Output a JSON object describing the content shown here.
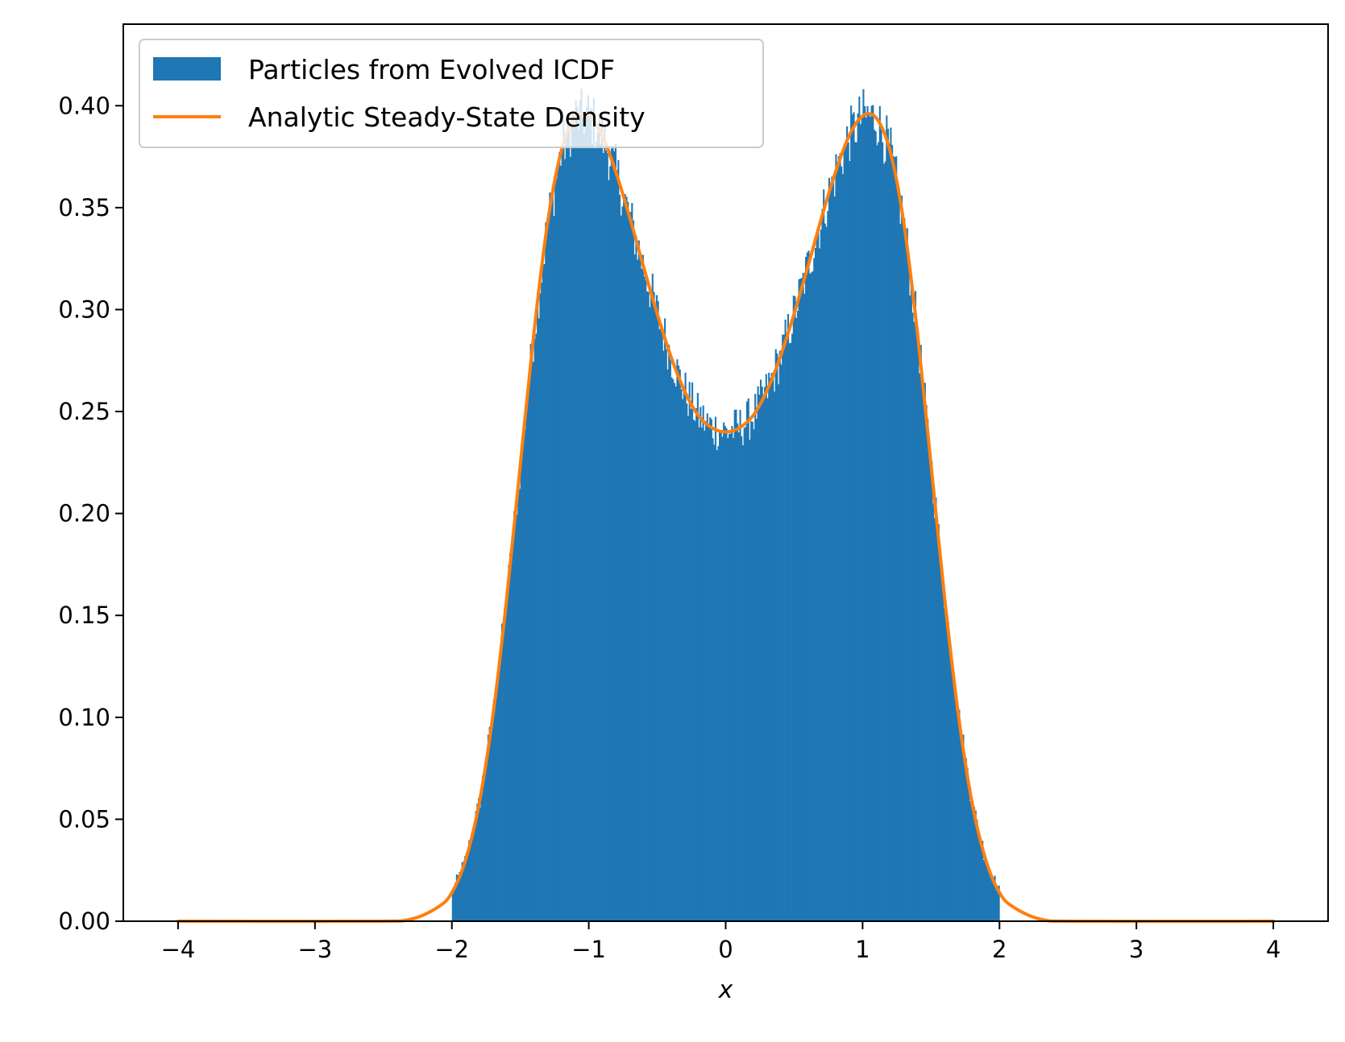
{
  "chart_data": {
    "type": "histogram",
    "xlabel": "x",
    "ylabel": "",
    "title": "",
    "xlim": [
      -4.4,
      4.4
    ],
    "ylim": [
      0,
      0.44
    ],
    "xticks": [
      -4,
      -3,
      -2,
      -1,
      0,
      1,
      2,
      3,
      4
    ],
    "xtick_labels": [
      "−4",
      "−3",
      "−2",
      "−1",
      "0",
      "1",
      "2",
      "3",
      "4"
    ],
    "yticks": [
      0,
      0.05,
      0.1,
      0.15,
      0.2,
      0.25,
      0.3,
      0.35,
      0.4
    ],
    "ytick_labels": [
      "0.00",
      "0.05",
      "0.10",
      "0.15",
      "0.20",
      "0.25",
      "0.30",
      "0.35",
      "0.40"
    ],
    "grid": false,
    "legend_position": "upper-left",
    "series": [
      {
        "name": "Particles from Evolved ICDF",
        "kind": "histogram",
        "color": "#1f77b4",
        "bin_range": [
          -2.0,
          2.0
        ],
        "bin_count": 400
      },
      {
        "name": "Analytic Steady-State Density",
        "kind": "line",
        "color": "#ff7f0e",
        "x_range": [
          -4,
          4
        ],
        "density": "unnormalized exp(-(x^2-1)^2 + 0.5 x^2) shape, peaks about 0.395 at x=±1, trough 0.24 at x=0",
        "points": [
          [
            -4.0,
            0.0
          ],
          [
            -2.6,
            0.0
          ],
          [
            -2.3,
            0.001
          ],
          [
            -2.1,
            0.007
          ],
          [
            -2.0,
            0.014
          ],
          [
            -1.9,
            0.03
          ],
          [
            -1.8,
            0.058
          ],
          [
            -1.7,
            0.101
          ],
          [
            -1.6,
            0.158
          ],
          [
            -1.5,
            0.224
          ],
          [
            -1.4,
            0.289
          ],
          [
            -1.3,
            0.343
          ],
          [
            -1.2,
            0.378
          ],
          [
            -1.1,
            0.394
          ],
          [
            -1.0,
            0.395
          ],
          [
            -0.9,
            0.385
          ],
          [
            -0.8,
            0.367
          ],
          [
            -0.7,
            0.345
          ],
          [
            -0.6,
            0.321
          ],
          [
            -0.5,
            0.298
          ],
          [
            -0.4,
            0.277
          ],
          [
            -0.3,
            0.26
          ],
          [
            -0.2,
            0.248
          ],
          [
            -0.1,
            0.242
          ],
          [
            0.0,
            0.24
          ],
          [
            0.1,
            0.242
          ],
          [
            0.2,
            0.248
          ],
          [
            0.3,
            0.26
          ],
          [
            0.4,
            0.277
          ],
          [
            0.5,
            0.298
          ],
          [
            0.6,
            0.321
          ],
          [
            0.7,
            0.345
          ],
          [
            0.8,
            0.367
          ],
          [
            0.9,
            0.385
          ],
          [
            1.0,
            0.395
          ],
          [
            1.1,
            0.394
          ],
          [
            1.2,
            0.378
          ],
          [
            1.3,
            0.343
          ],
          [
            1.4,
            0.289
          ],
          [
            1.5,
            0.224
          ],
          [
            1.6,
            0.158
          ],
          [
            1.7,
            0.101
          ],
          [
            1.8,
            0.058
          ],
          [
            1.9,
            0.03
          ],
          [
            2.0,
            0.014
          ],
          [
            2.1,
            0.007
          ],
          [
            2.3,
            0.001
          ],
          [
            2.6,
            0.0
          ],
          [
            4.0,
            0.0
          ]
        ]
      }
    ]
  },
  "colors": {
    "histogram": "#1f77b4",
    "line": "#ff7f0e",
    "axes": "#000000",
    "legend_border": "#cccccc"
  }
}
